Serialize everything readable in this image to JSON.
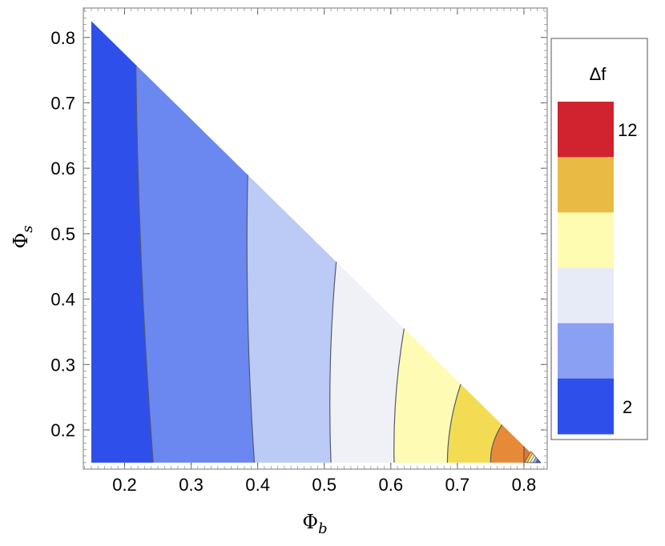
{
  "chart_data": {
    "type": "contour",
    "xlabel": "Φ_b",
    "ylabel": "Φ_s",
    "xlim": [
      0.138,
      0.835
    ],
    "ylim": [
      0.14,
      0.845
    ],
    "xticks": [
      0.2,
      0.3,
      0.4,
      0.5,
      0.6,
      0.7,
      0.8
    ],
    "yticks": [
      0.2,
      0.3,
      0.4,
      0.5,
      0.6,
      0.7,
      0.8
    ],
    "domain_x_min": 0.15,
    "domain_y_min": 0.15,
    "domain_sum_max": 0.975,
    "levels": [
      {
        "color": "#2e4fea",
        "boundary_bottom_x": 0.243,
        "boundary_top_x": 0.217
      },
      {
        "color": "#6a88ef",
        "boundary_bottom_x": 0.395,
        "boundary_top_x": 0.385
      },
      {
        "color": "#bccaf6",
        "boundary_bottom_x": 0.51,
        "boundary_top_x": 0.518
      },
      {
        "color": "#f0f1f6",
        "boundary_bottom_x": 0.605,
        "boundary_top_x": 0.62
      },
      {
        "color": "#fefcb4",
        "boundary_bottom_x": 0.685,
        "boundary_top_x": 0.705
      },
      {
        "color": "#f3dc53",
        "boundary_bottom_x": 0.75,
        "boundary_top_x": 0.767
      },
      {
        "color": "#e68a38",
        "boundary_bottom_x": 0.8,
        "boundary_top_x": 0.8
      }
    ],
    "legend": {
      "title": "Δf",
      "tick_labels": [
        "12",
        "2"
      ],
      "colors": [
        "#d1232f",
        "#eabb44",
        "#fdfcb1",
        "#e7ebf8",
        "#8aa0f2",
        "#2e4fea"
      ]
    }
  }
}
